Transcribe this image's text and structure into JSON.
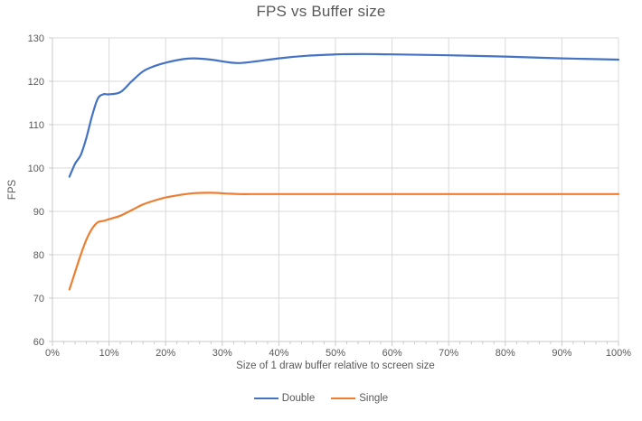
{
  "chart_data": {
    "type": "line",
    "title": "FPS vs Buffer size",
    "xlabel": "Size of 1 draw buffer relative to screen size",
    "ylabel": "FPS",
    "xlim": [
      0,
      100
    ],
    "ylim": [
      60,
      130
    ],
    "x_major_step": 10,
    "x_minor_step": 2,
    "y_major_step": 10,
    "x_tick_suffix": "%",
    "grid": true,
    "smooth_lines": true,
    "legend_position": "bottom",
    "x_tick_labels": [
      "0%",
      "10%",
      "20%",
      "30%",
      "40%",
      "50%",
      "60%",
      "70%",
      "80%",
      "90%",
      "100%"
    ],
    "y_tick_labels": [
      "60",
      "70",
      "80",
      "90",
      "100",
      "110",
      "120",
      "130"
    ],
    "series": [
      {
        "name": "Double",
        "color": "#4472C4",
        "points": [
          [
            3,
            98
          ],
          [
            4,
            101
          ],
          [
            5,
            103
          ],
          [
            6,
            107
          ],
          [
            7,
            112
          ],
          [
            8,
            116
          ],
          [
            9,
            117
          ],
          [
            10,
            117
          ],
          [
            12,
            117.5
          ],
          [
            14,
            120
          ],
          [
            16,
            122.3
          ],
          [
            18,
            123.5
          ],
          [
            20,
            124.3
          ],
          [
            23,
            125.1
          ],
          [
            25,
            125.3
          ],
          [
            28,
            125
          ],
          [
            31,
            124.4
          ],
          [
            33,
            124.2
          ],
          [
            36,
            124.6
          ],
          [
            40,
            125.3
          ],
          [
            45,
            125.9
          ],
          [
            50,
            126.2
          ],
          [
            55,
            126.3
          ],
          [
            60,
            126.2
          ],
          [
            70,
            126
          ],
          [
            80,
            125.7
          ],
          [
            90,
            125.3
          ],
          [
            100,
            125
          ]
        ]
      },
      {
        "name": "Single",
        "color": "#ED7D31",
        "points": [
          [
            3,
            72
          ],
          [
            4,
            76
          ],
          [
            5,
            80
          ],
          [
            6,
            83.5
          ],
          [
            7,
            86
          ],
          [
            8,
            87.5
          ],
          [
            9,
            87.8
          ],
          [
            10,
            88.2
          ],
          [
            12,
            89
          ],
          [
            14,
            90.3
          ],
          [
            16,
            91.6
          ],
          [
            18,
            92.5
          ],
          [
            20,
            93.2
          ],
          [
            23,
            93.9
          ],
          [
            25,
            94.2
          ],
          [
            28,
            94.3
          ],
          [
            31,
            94.1
          ],
          [
            33,
            94
          ],
          [
            36,
            94
          ],
          [
            40,
            94
          ],
          [
            45,
            94
          ],
          [
            50,
            94
          ],
          [
            60,
            94
          ],
          [
            70,
            94
          ],
          [
            80,
            94
          ],
          [
            90,
            94
          ],
          [
            100,
            94
          ]
        ]
      }
    ]
  },
  "colors": {
    "grid": "#D9D9D9",
    "axis": "#C9C9C9",
    "tick": "#C9C9C9",
    "text": "#595959",
    "background": "#FFFFFF"
  }
}
